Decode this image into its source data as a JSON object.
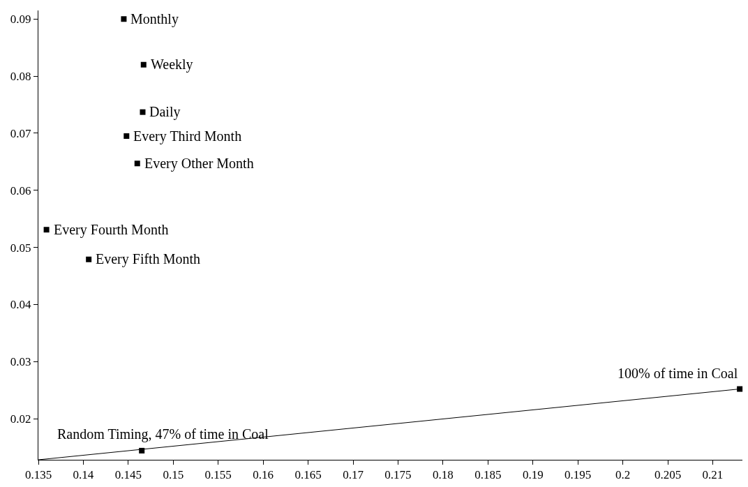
{
  "chart_data": {
    "type": "scatter",
    "marker": "square",
    "xlim": [
      0.135,
      0.2133
    ],
    "ylim": [
      0.0128,
      0.0915
    ],
    "xticks": [
      0.135,
      0.14,
      0.145,
      0.15,
      0.155,
      0.16,
      0.165,
      0.17,
      0.175,
      0.18,
      0.185,
      0.19,
      0.195,
      0.2,
      0.205,
      0.21
    ],
    "yticks": [
      0.02,
      0.03,
      0.04,
      0.05,
      0.06,
      0.07,
      0.08,
      0.09
    ],
    "series": [
      {
        "color": "#000000",
        "x": [
          0.1445,
          0.1467,
          0.1466,
          0.1448,
          0.146,
          0.1359,
          0.1406,
          0.1465,
          0.213
        ],
        "values": [
          0.09,
          0.082,
          0.0737,
          0.0695,
          0.0647,
          0.0531,
          0.0479,
          0.0144,
          0.0252
        ]
      },
      {
        "type": "line",
        "marker": "none",
        "color": "#000000",
        "x": [
          0.135,
          0.213
        ],
        "values": [
          0.0128,
          0.0252
        ]
      }
    ],
    "annotations": [
      {
        "text": "Monthly",
        "x": 0.1445,
        "y": 0.09
      },
      {
        "text": "Weekly",
        "x": 0.1467,
        "y": 0.082
      },
      {
        "text": "Daily",
        "x": 0.1466,
        "y": 0.0737
      },
      {
        "text": "Every Third Month",
        "x": 0.1448,
        "y": 0.0695
      },
      {
        "text": "Every Other Month",
        "x": 0.146,
        "y": 0.0647
      },
      {
        "text": "Every Fourth Month",
        "x": 0.1359,
        "y": 0.0531
      },
      {
        "text": "Every Fifth Month",
        "x": 0.1406,
        "y": 0.0479
      },
      {
        "text": "Random Timing, 47% of time in Coal",
        "x": 0.1465,
        "y": 0.0144
      },
      {
        "text": "100% of time in Coal",
        "x": 0.213,
        "y": 0.0252
      }
    ]
  }
}
